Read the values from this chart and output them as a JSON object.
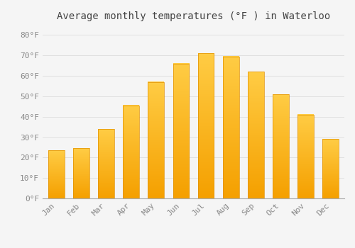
{
  "title": "Average monthly temperatures (°F ) in Waterloo",
  "months": [
    "Jan",
    "Feb",
    "Mar",
    "Apr",
    "May",
    "Jun",
    "Jul",
    "Aug",
    "Sep",
    "Oct",
    "Nov",
    "Dec"
  ],
  "values": [
    23.5,
    24.5,
    34.0,
    45.5,
    57.0,
    66.0,
    71.0,
    69.5,
    62.0,
    51.0,
    41.0,
    29.0
  ],
  "bar_color_top": "#FDB92E",
  "bar_color_bottom": "#F5A800",
  "bar_edge_color": "#E09000",
  "background_color": "#F5F5F5",
  "plot_bg_color": "#F5F5F5",
  "grid_color": "#DDDDDD",
  "ytick_labels": [
    "0°F",
    "10°F",
    "20°F",
    "30°F",
    "40°F",
    "50°F",
    "60°F",
    "70°F",
    "80°F"
  ],
  "ytick_values": [
    0,
    10,
    20,
    30,
    40,
    50,
    60,
    70,
    80
  ],
  "ylim": [
    0,
    85
  ],
  "title_fontsize": 10,
  "tick_fontsize": 8,
  "title_color": "#444444",
  "tick_color": "#888888",
  "font_family": "monospace",
  "bar_width": 0.65
}
